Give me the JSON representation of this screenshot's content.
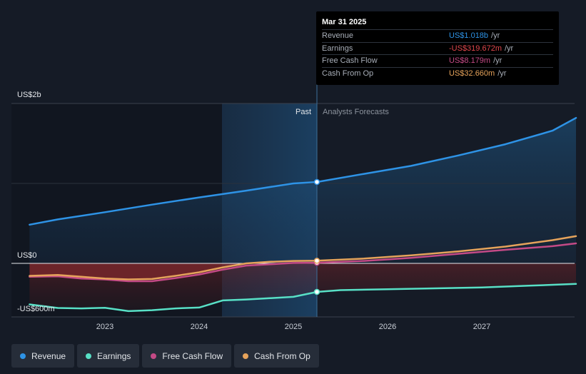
{
  "chart_data": {
    "type": "line",
    "x_ticks": [
      "2023",
      "2024",
      "2025",
      "2026",
      "2027"
    ],
    "y_labels": [
      "US$2b",
      "US$0",
      "-US$600m"
    ],
    "past_label": "Past",
    "forecast_label": "Analysts Forecasts",
    "ylim": [
      -600,
      2000
    ],
    "colors": {
      "revenue": "#2e93e6",
      "earnings": "#58e0c6",
      "fcf": "#c44a86",
      "cfo": "#e6a35b"
    },
    "series": [
      {
        "key": "revenue",
        "name": "Revenue",
        "x": [
          2022.2,
          2022.5,
          2023.0,
          2023.5,
          2024.0,
          2024.5,
          2025.0,
          2025.25,
          2025.75,
          2026.25,
          2026.75,
          2027.25,
          2027.75,
          2028.0
        ],
        "y": [
          484,
          550,
          640,
          735,
          825,
          910,
          1000,
          1018,
          1120,
          1220,
          1350,
          1490,
          1660,
          1820
        ]
      },
      {
        "key": "earnings",
        "name": "Earnings",
        "x": [
          2022.2,
          2022.5,
          2022.75,
          2023.0,
          2023.25,
          2023.5,
          2023.75,
          2024.0,
          2024.25,
          2024.5,
          2024.75,
          2025.0,
          2025.25,
          2025.5,
          2026.0,
          2026.5,
          2027.0,
          2027.5,
          2028.0
        ],
        "y": [
          -460,
          -500,
          -505,
          -498,
          -535,
          -525,
          -505,
          -495,
          -415,
          -405,
          -390,
          -375,
          -319.672,
          -300,
          -290,
          -280,
          -270,
          -250,
          -230
        ]
      },
      {
        "key": "fcf",
        "name": "Free Cash Flow",
        "x": [
          2022.2,
          2022.5,
          2022.75,
          2023.0,
          2023.25,
          2023.5,
          2023.75,
          2024.0,
          2024.25,
          2024.5,
          2024.75,
          2025.0,
          2025.25,
          2025.75,
          2026.25,
          2026.75,
          2027.25,
          2027.75,
          2028.0
        ],
        "y": [
          -150,
          -145,
          -170,
          -180,
          -200,
          -200,
          -165,
          -125,
          -70,
          -25,
          -10,
          5,
          8.179,
          30,
          70,
          120,
          170,
          215,
          250
        ]
      },
      {
        "key": "cfo",
        "name": "Cash From Op",
        "x": [
          2022.2,
          2022.5,
          2022.75,
          2023.0,
          2023.25,
          2023.5,
          2023.75,
          2024.0,
          2024.25,
          2024.5,
          2024.75,
          2025.0,
          2025.25,
          2025.75,
          2026.25,
          2026.75,
          2027.25,
          2027.75,
          2028.0
        ],
        "y": [
          -140,
          -130,
          -150,
          -170,
          -180,
          -175,
          -140,
          -100,
          -45,
          0,
          20,
          30,
          32.66,
          60,
          100,
          150,
          210,
          290,
          340
        ]
      }
    ],
    "highlight": {
      "x": 2025.25,
      "label": "Mar 31 2025"
    }
  },
  "tooltip": {
    "date": "Mar 31 2025",
    "rows": [
      {
        "label": "Revenue",
        "value": "US$1.018b",
        "unit": "/yr",
        "color": "#2e93e6"
      },
      {
        "label": "Earnings",
        "value": "-US$319.672m",
        "unit": "/yr",
        "color": "#e0474c"
      },
      {
        "label": "Free Cash Flow",
        "value": "US$8.179m",
        "unit": "/yr",
        "color": "#c44a86"
      },
      {
        "label": "Cash From Op",
        "value": "US$32.660m",
        "unit": "/yr",
        "color": "#e6a35b"
      }
    ]
  },
  "legend": [
    {
      "label": "Revenue",
      "color": "#2e93e6"
    },
    {
      "label": "Earnings",
      "color": "#58e0c6"
    },
    {
      "label": "Free Cash Flow",
      "color": "#c44a86"
    },
    {
      "label": "Cash From Op",
      "color": "#e6a35b"
    }
  ]
}
